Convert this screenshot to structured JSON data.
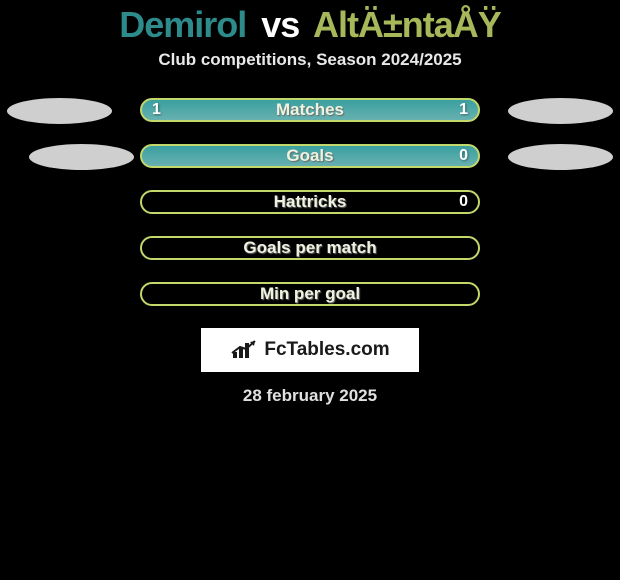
{
  "colors": {
    "page_bg": "#000000",
    "heading_left": "#2e8b8b",
    "heading_vs": "#ffffff",
    "heading_right": "#a7b85a",
    "subheading_text": "#e8e8e8",
    "oval_left": "#cfcfcf",
    "oval_right": "#cfcfcf",
    "bar_fill1": "#3aa0a0",
    "bar_fill2": "#68b0b0",
    "bar_border": "#c2d86a",
    "bar_label_text": "#eef3e0",
    "bar_label_shadow": "#6a6a6a",
    "bar_value_text": "#ffffff",
    "logo_bg": "#ffffff",
    "logo_icon": "#1a1a1a",
    "logo_text": "#1a1a1a",
    "date_text": "#e0e0e0"
  },
  "typography": {
    "heading_fontsize": 36,
    "subheading_fontsize": 17,
    "bar_label_fontsize": 17,
    "bar_value_fontsize": 16,
    "logo_fontsize": 19,
    "date_fontsize": 17
  },
  "heading": {
    "left": "Demirol",
    "vs": "vs",
    "right": "AltÄ±ntaÅŸ"
  },
  "subheading": "Club competitions, Season 2024/2025",
  "rows": [
    {
      "label": "Matches",
      "left_val": "1",
      "right_val": "1",
      "show_left_oval": true,
      "show_right_oval": true,
      "fill_percent": 100,
      "fill_side": "left",
      "left_oval_offset": 0,
      "right_oval_offset": 0
    },
    {
      "label": "Goals",
      "left_val": "",
      "right_val": "0",
      "show_left_oval": true,
      "show_right_oval": true,
      "fill_percent": 100,
      "fill_side": "left",
      "left_oval_offset": 22,
      "right_oval_offset": 0
    },
    {
      "label": "Hattricks",
      "left_val": "",
      "right_val": "0",
      "show_left_oval": false,
      "show_right_oval": false,
      "fill_percent": 0,
      "fill_side": "none"
    },
    {
      "label": "Goals per match",
      "left_val": "",
      "right_val": "",
      "show_left_oval": false,
      "show_right_oval": false,
      "fill_percent": 0,
      "fill_side": "none"
    },
    {
      "label": "Min per goal",
      "left_val": "",
      "right_val": "",
      "show_left_oval": false,
      "show_right_oval": false,
      "fill_percent": 0,
      "fill_side": "none"
    }
  ],
  "logo": {
    "text": "FcTables.com"
  },
  "date": "28 february 2025"
}
